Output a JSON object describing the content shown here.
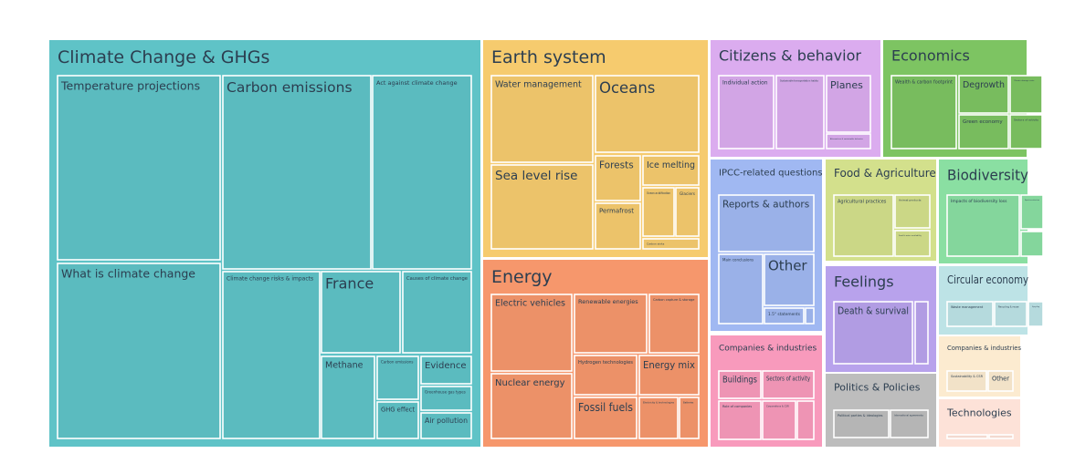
{
  "chart_data": {
    "type": "treemap",
    "groups": [
      {
        "name": "Climate Change & GHGs",
        "color": "#5FC3C7",
        "children": [
          {
            "name": "Temperature projections"
          },
          {
            "name": "Carbon emissions"
          },
          {
            "name": "Act against climate change"
          },
          {
            "name": "What is climate change"
          },
          {
            "name": "Climate change risks & impacts"
          },
          {
            "name": "France"
          },
          {
            "name": "Causes of climate change"
          },
          {
            "name": "Methane"
          },
          {
            "name": "Carbon emissions"
          },
          {
            "name": "Evidence"
          },
          {
            "name": "Greenhouse gas types"
          },
          {
            "name": "GHG effect"
          },
          {
            "name": "Air pollution"
          }
        ]
      },
      {
        "name": "Earth system",
        "color": "#F6CB6E",
        "children": [
          {
            "name": "Water management"
          },
          {
            "name": "Oceans"
          },
          {
            "name": "Sea level rise"
          },
          {
            "name": "Forests"
          },
          {
            "name": "Ice melting"
          },
          {
            "name": "Permafrost"
          },
          {
            "name": "Ocean acidification"
          },
          {
            "name": "Glaciers"
          },
          {
            "name": "Carbon sinks"
          }
        ]
      },
      {
        "name": "Energy",
        "color": "#F6976C",
        "children": [
          {
            "name": "Electric vehicles"
          },
          {
            "name": "Renewable energies"
          },
          {
            "name": "Carbon capture & storage"
          },
          {
            "name": "Hydrogen technologies"
          },
          {
            "name": "Energy mix"
          },
          {
            "name": "Nuclear energy"
          },
          {
            "name": "Fossil fuels"
          },
          {
            "name": "Electricity & technologies"
          },
          {
            "name": "Batteries"
          }
        ]
      },
      {
        "name": "Citizens & behavior",
        "color": "#DBACEF",
        "children": [
          {
            "name": "Individual action"
          },
          {
            "name": "Sustainable transportation habits"
          },
          {
            "name": "Planes"
          },
          {
            "name": "Alternatives & sustainable behavior"
          }
        ]
      },
      {
        "name": "Economics",
        "color": "#7DC462",
        "children": [
          {
            "name": "Wealth & carbon footprint"
          },
          {
            "name": "Degrowth"
          },
          {
            "name": "Climate damage costs"
          },
          {
            "name": "Green economy"
          },
          {
            "name": "Sectors of activity"
          }
        ]
      },
      {
        "name": "IPCC-related questions",
        "color": "#A0B8F2",
        "children": [
          {
            "name": "Reports & authors"
          },
          {
            "name": "Main conclusions"
          },
          {
            "name": "Other"
          },
          {
            "name": "1.5° statements"
          },
          {
            "name": ""
          }
        ]
      },
      {
        "name": "Food & Agriculture",
        "color": "#D3E08C",
        "children": [
          {
            "name": "Agricultural practices"
          },
          {
            "name": "Animal products"
          },
          {
            "name": "Food & water availability"
          }
        ]
      },
      {
        "name": "Biodiversity",
        "color": "#8ADFA2",
        "children": [
          {
            "name": "Impacts of biodiversity loss"
          },
          {
            "name": "Species extinction"
          },
          {
            "name": ""
          }
        ]
      },
      {
        "name": "Feelings",
        "color": "#B8A2EC",
        "children": [
          {
            "name": "Death & survival"
          },
          {
            "name": ""
          }
        ]
      },
      {
        "name": "Companies & industries",
        "color": "#F89ABC",
        "children": [
          {
            "name": "Buildings"
          },
          {
            "name": "Sectors of activity"
          },
          {
            "name": "Role of companies"
          },
          {
            "name": "Corporations & CSR"
          },
          {
            "name": ""
          }
        ]
      },
      {
        "name": "Politics & Policies",
        "color": "#BDBDBD",
        "children": [
          {
            "name": "Political parties & ideologies"
          },
          {
            "name": "International agreements"
          }
        ]
      },
      {
        "name": "Circular economy",
        "color": "#BDE3E6",
        "children": [
          {
            "name": "Waste management"
          },
          {
            "name": "Recycling & reuse"
          },
          {
            "name": "Upcycling"
          }
        ]
      },
      {
        "name": "Companies & industries",
        "color": "#FCEBD0",
        "children": [
          {
            "name": "Sustainability & CSR"
          },
          {
            "name": "Other"
          }
        ]
      },
      {
        "name": "Technologies",
        "color": "#FDE2D8",
        "children": [
          {
            "name": ""
          },
          {
            "name": ""
          }
        ]
      },
      {
        "name": "",
        "color": "#FFFFFF",
        "children": []
      }
    ]
  }
}
